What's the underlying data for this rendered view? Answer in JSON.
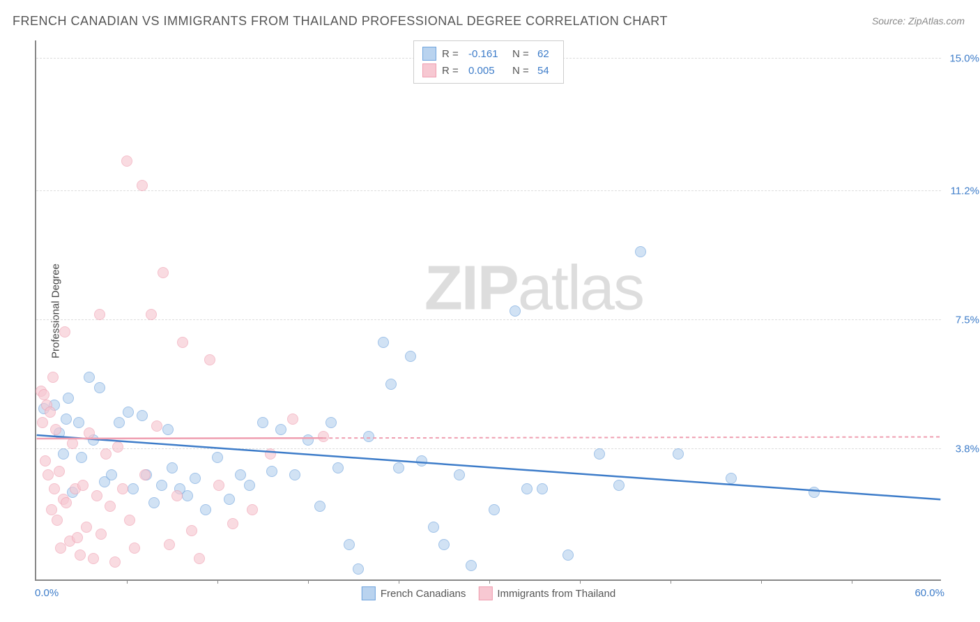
{
  "title": "FRENCH CANADIAN VS IMMIGRANTS FROM THAILAND PROFESSIONAL DEGREE CORRELATION CHART",
  "source": "Source: ZipAtlas.com",
  "y_axis_label": "Professional Degree",
  "watermark_bold": "ZIP",
  "watermark_light": "atlas",
  "chart": {
    "type": "scatter",
    "xlim": [
      0,
      60
    ],
    "ylim": [
      0,
      15.5
    ],
    "x_ticks": [
      "0.0%",
      "60.0%"
    ],
    "y_grid": [
      {
        "value": 3.8,
        "label": "3.8%"
      },
      {
        "value": 7.5,
        "label": "7.5%"
      },
      {
        "value": 11.2,
        "label": "11.2%"
      },
      {
        "value": 15.0,
        "label": "15.0%"
      }
    ],
    "x_minor_ticks_pct_x": [
      6,
      12,
      18,
      24,
      30,
      36,
      42,
      48,
      54
    ],
    "background_color": "#ffffff",
    "grid_color": "#dddddd",
    "axis_color": "#888888",
    "label_color": "#3d7cc9"
  },
  "series": [
    {
      "name": "French Canadians",
      "fill": "#b9d3ef",
      "stroke": "#6ea3dd",
      "fill_opacity": 0.65,
      "R": "-0.161",
      "N": "62",
      "trend": {
        "x1": 0,
        "y1": 4.15,
        "x2": 60,
        "y2": 2.3,
        "color": "#3d7cc9",
        "solid_until_x": 60
      },
      "points": [
        [
          0.5,
          4.9
        ],
        [
          1.2,
          5.0
        ],
        [
          1.5,
          4.2
        ],
        [
          1.8,
          3.6
        ],
        [
          2.0,
          4.6
        ],
        [
          2.1,
          5.2
        ],
        [
          2.4,
          2.5
        ],
        [
          2.8,
          4.5
        ],
        [
          3.0,
          3.5
        ],
        [
          3.5,
          5.8
        ],
        [
          3.8,
          4.0
        ],
        [
          4.2,
          5.5
        ],
        [
          4.5,
          2.8
        ],
        [
          5.0,
          3.0
        ],
        [
          5.5,
          4.5
        ],
        [
          6.1,
          4.8
        ],
        [
          6.4,
          2.6
        ],
        [
          7.0,
          4.7
        ],
        [
          7.3,
          3.0
        ],
        [
          7.8,
          2.2
        ],
        [
          8.3,
          2.7
        ],
        [
          8.7,
          4.3
        ],
        [
          9.0,
          3.2
        ],
        [
          9.5,
          2.6
        ],
        [
          10.0,
          2.4
        ],
        [
          10.5,
          2.9
        ],
        [
          11.2,
          2.0
        ],
        [
          12.0,
          3.5
        ],
        [
          12.8,
          2.3
        ],
        [
          13.5,
          3.0
        ],
        [
          14.1,
          2.7
        ],
        [
          15.0,
          4.5
        ],
        [
          15.6,
          3.1
        ],
        [
          16.2,
          4.3
        ],
        [
          17.1,
          3.0
        ],
        [
          18.0,
          4.0
        ],
        [
          18.8,
          2.1
        ],
        [
          19.5,
          4.5
        ],
        [
          20.0,
          3.2
        ],
        [
          20.7,
          1.0
        ],
        [
          21.3,
          0.3
        ],
        [
          22.0,
          4.1
        ],
        [
          23.0,
          6.8
        ],
        [
          23.5,
          5.6
        ],
        [
          24.0,
          3.2
        ],
        [
          24.8,
          6.4
        ],
        [
          25.5,
          3.4
        ],
        [
          26.3,
          1.5
        ],
        [
          27.0,
          1.0
        ],
        [
          28.0,
          3.0
        ],
        [
          28.8,
          0.4
        ],
        [
          30.3,
          2.0
        ],
        [
          31.7,
          7.7
        ],
        [
          32.5,
          2.6
        ],
        [
          33.5,
          2.6
        ],
        [
          35.2,
          0.7
        ],
        [
          37.3,
          3.6
        ],
        [
          38.6,
          2.7
        ],
        [
          40.0,
          9.4
        ],
        [
          42.5,
          3.6
        ],
        [
          46.0,
          2.9
        ],
        [
          51.5,
          2.5
        ]
      ]
    },
    {
      "name": "Immigrants from Thailand",
      "fill": "#f7c8d2",
      "stroke": "#ef9eb0",
      "fill_opacity": 0.65,
      "R": "0.005",
      "N": "54",
      "trend": {
        "x1": 0,
        "y1": 4.05,
        "x2": 60,
        "y2": 4.1,
        "color": "#ef9eb0",
        "solid_until_x": 19
      },
      "points": [
        [
          0.3,
          5.4
        ],
        [
          0.4,
          4.5
        ],
        [
          0.5,
          5.3
        ],
        [
          0.6,
          3.4
        ],
        [
          0.7,
          5.0
        ],
        [
          0.8,
          3.0
        ],
        [
          0.9,
          4.8
        ],
        [
          1.0,
          2.0
        ],
        [
          1.1,
          5.8
        ],
        [
          1.2,
          2.6
        ],
        [
          1.3,
          4.3
        ],
        [
          1.4,
          1.7
        ],
        [
          1.5,
          3.1
        ],
        [
          1.6,
          0.9
        ],
        [
          1.8,
          2.3
        ],
        [
          1.9,
          7.1
        ],
        [
          2.0,
          2.2
        ],
        [
          2.2,
          1.1
        ],
        [
          2.4,
          3.9
        ],
        [
          2.6,
          2.6
        ],
        [
          2.7,
          1.2
        ],
        [
          2.9,
          0.7
        ],
        [
          3.1,
          2.7
        ],
        [
          3.3,
          1.5
        ],
        [
          3.5,
          4.2
        ],
        [
          3.8,
          0.6
        ],
        [
          4.0,
          2.4
        ],
        [
          4.2,
          7.6
        ],
        [
          4.3,
          1.3
        ],
        [
          4.6,
          3.6
        ],
        [
          4.9,
          2.1
        ],
        [
          5.2,
          0.5
        ],
        [
          5.4,
          3.8
        ],
        [
          5.7,
          2.6
        ],
        [
          6.0,
          12.0
        ],
        [
          6.2,
          1.7
        ],
        [
          6.5,
          0.9
        ],
        [
          7.0,
          11.3
        ],
        [
          7.2,
          3.0
        ],
        [
          7.6,
          7.6
        ],
        [
          8.0,
          4.4
        ],
        [
          8.4,
          8.8
        ],
        [
          8.8,
          1.0
        ],
        [
          9.3,
          2.4
        ],
        [
          9.7,
          6.8
        ],
        [
          10.3,
          1.4
        ],
        [
          10.8,
          0.6
        ],
        [
          11.5,
          6.3
        ],
        [
          12.1,
          2.7
        ],
        [
          13.0,
          1.6
        ],
        [
          14.3,
          2.0
        ],
        [
          15.5,
          3.6
        ],
        [
          17.0,
          4.6
        ],
        [
          19.0,
          4.1
        ]
      ]
    }
  ],
  "legend_labels": {
    "R": "R =",
    "N": "N ="
  }
}
